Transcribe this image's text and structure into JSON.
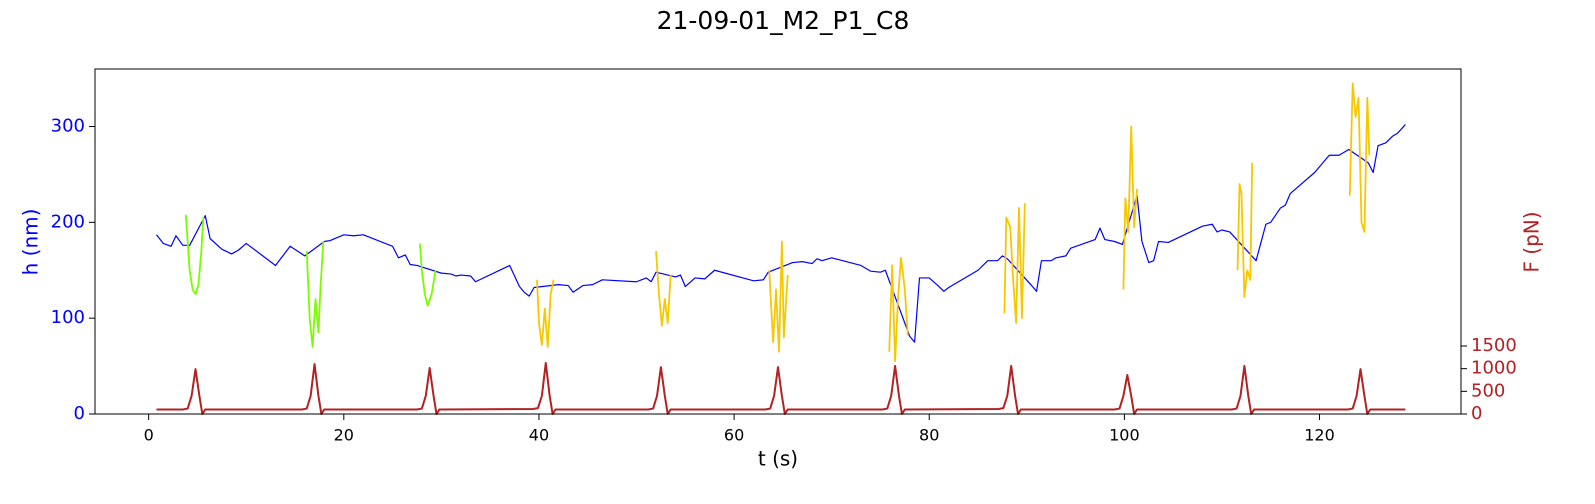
{
  "chart_data": {
    "type": "line",
    "title": "21-09-01_M2_P1_C8",
    "xlabel": "t (s)",
    "ylabel": "h (nm)",
    "y2label": "F (pN)",
    "xlim": [
      -5.5,
      134.5
    ],
    "xticks": [
      0,
      20,
      40,
      60,
      80,
      100,
      120
    ],
    "ylim": [
      0,
      360
    ],
    "yticks": [
      0,
      100,
      200,
      300
    ],
    "y2lim": [
      0,
      7610
    ],
    "y2ticks": [
      0,
      500,
      1000,
      1500
    ],
    "ycolor": "#0000ff",
    "y2color": "#b22222",
    "series": [
      {
        "color": "#0000ff",
        "axis": "y",
        "x": [
          0.8,
          1.5,
          2.3,
          2.8,
          3.5,
          4.2,
          5.8,
          6.3,
          7.5,
          8.5,
          9.2,
          10,
          13,
          14.5,
          16,
          18,
          18.6,
          20,
          21,
          22,
          25,
          25.6,
          26.3,
          26.8,
          27.5,
          30,
          31,
          31.5,
          32,
          33,
          33.5,
          37,
          38,
          38.5,
          39,
          39.5,
          42,
          43,
          43.5,
          44.5,
          45.5,
          46.5,
          50,
          51,
          51.5,
          52,
          54,
          54.5,
          55,
          56,
          57,
          58,
          62,
          63,
          63.5,
          66,
          67,
          68,
          68.5,
          69,
          70,
          73,
          74,
          75,
          75.5,
          78,
          78.5,
          79,
          80,
          81,
          81.5,
          82,
          85,
          86,
          87,
          87.5,
          88,
          90.5,
          91,
          91.5,
          92.5,
          93,
          94,
          94.5,
          97,
          97.5,
          98,
          99,
          99.8,
          101.3,
          101.8,
          102.5,
          103,
          103.5,
          104.5,
          108,
          109,
          109.5,
          110,
          110.8,
          113.5,
          114.5,
          115,
          116,
          116.5,
          117,
          119.5,
          121,
          122,
          123,
          125,
          125.5,
          126,
          126.8,
          127.5,
          128,
          128.8
        ],
        "values": [
          187,
          178,
          175,
          186,
          176,
          176,
          207,
          183,
          172,
          167,
          171,
          178,
          155,
          175,
          165,
          180,
          181,
          187,
          186,
          187,
          175,
          163,
          166,
          156,
          155,
          147,
          146,
          144,
          145,
          144,
          138,
          155,
          133,
          127,
          123,
          132,
          135,
          134,
          127,
          134,
          135,
          140,
          138,
          142,
          138,
          148,
          143,
          145,
          133,
          142,
          141,
          150,
          139,
          140,
          148,
          158,
          159,
          157,
          162,
          160,
          163,
          155,
          149,
          148,
          150,
          81,
          75,
          142,
          142,
          133,
          128,
          132,
          150,
          160,
          160,
          165,
          162,
          134,
          128,
          160,
          160,
          163,
          165,
          173,
          182,
          194,
          182,
          180,
          177,
          228,
          180,
          158,
          160,
          180,
          179,
          196,
          198,
          190,
          192,
          190,
          160,
          198,
          200,
          215,
          218,
          230,
          252,
          270,
          270,
          276,
          262,
          252,
          280,
          283,
          290,
          293,
          302
        ]
      },
      {
        "color": "#7cfc00",
        "axis": "y",
        "x": [
          3.8,
          4.0,
          4.2,
          4.5,
          4.8,
          5.1,
          5.4,
          5.6,
          10,
          16.2,
          16.5,
          16.8,
          17.1,
          17.4,
          17.6,
          17.9,
          22,
          27.8,
          28.0,
          28.3,
          28.6,
          29.0,
          29.4
        ],
        "values": [
          208,
          180,
          150,
          130,
          125,
          135,
          170,
          205,
          null,
          170,
          100,
          70,
          120,
          85,
          130,
          180,
          null,
          178,
          150,
          125,
          113,
          125,
          150
        ]
      },
      {
        "color": "#f5c800",
        "axis": "y",
        "x": [
          39.8,
          40.0,
          40.3,
          40.6,
          40.9,
          41.2,
          41.5,
          46,
          52.0,
          52.3,
          52.6,
          52.9,
          53.2,
          53.5,
          58,
          63.6,
          64.0,
          64.3,
          64.6,
          64.9,
          65.1,
          65.5,
          70,
          75.9,
          76.2,
          76.5,
          76.8,
          77.1,
          77.5,
          77.8,
          82,
          87.7,
          87.9,
          88.3,
          88.6,
          88.9,
          89.2,
          89.5,
          89.8,
          95,
          99.9,
          100.1,
          100.4,
          100.7,
          101.0,
          101.3,
          106,
          111.6,
          111.8,
          112.0,
          112.3,
          112.6,
          112.9,
          113.1,
          118,
          123.1,
          123.4,
          123.7,
          124.0,
          124.3,
          124.6,
          124.9,
          125.1
        ],
        "values": [
          140,
          95,
          72,
          110,
          70,
          125,
          140,
          null,
          170,
          125,
          92,
          120,
          95,
          145,
          null,
          150,
          75,
          130,
          65,
          180,
          80,
          145,
          null,
          65,
          155,
          55,
          120,
          163,
          130,
          82,
          null,
          105,
          205,
          195,
          140,
          95,
          215,
          100,
          220,
          null,
          130,
          225,
          190,
          300,
          195,
          235,
          null,
          150,
          240,
          230,
          122,
          150,
          140,
          262,
          null,
          228,
          345,
          310,
          330,
          200,
          190,
          330,
          270
        ]
      },
      {
        "color": "#b22222",
        "axis": "y2",
        "x": [
          0.8,
          3.5,
          4.0,
          4.4,
          4.8,
          5.2,
          5.5,
          5.8,
          15.7,
          16.2,
          16.6,
          17.0,
          17.4,
          17.7,
          18.0,
          27.5,
          28.0,
          28.4,
          28.8,
          29.2,
          29.5,
          29.8,
          39.4,
          39.9,
          40.3,
          40.7,
          41.1,
          41.4,
          41.7,
          51.2,
          51.7,
          52.1,
          52.5,
          52.9,
          53.2,
          53.5,
          63.2,
          63.7,
          64.1,
          64.5,
          64.9,
          65.2,
          65.5,
          75.2,
          75.7,
          76.1,
          76.5,
          76.9,
          77.2,
          77.5,
          87.1,
          87.6,
          88.0,
          88.4,
          88.8,
          89.1,
          89.4,
          99.0,
          99.5,
          99.9,
          100.3,
          100.7,
          101.0,
          101.3,
          111.0,
          111.5,
          111.9,
          112.3,
          112.7,
          113.0,
          113.3,
          122.9,
          123.4,
          123.8,
          124.2,
          124.6,
          124.9,
          125.2,
          128.8
        ],
        "values": [
          100,
          100,
          120,
          400,
          990,
          400,
          0,
          100,
          100,
          120,
          400,
          1100,
          400,
          0,
          100,
          100,
          120,
          400,
          1015,
          400,
          0,
          100,
          110,
          130,
          400,
          1125,
          400,
          0,
          100,
          100,
          120,
          400,
          1035,
          400,
          0,
          100,
          100,
          120,
          400,
          1035,
          400,
          0,
          100,
          100,
          120,
          400,
          1060,
          400,
          0,
          100,
          110,
          130,
          400,
          1060,
          400,
          0,
          100,
          100,
          120,
          400,
          860,
          400,
          0,
          100,
          100,
          120,
          400,
          1060,
          400,
          0,
          100,
          100,
          120,
          400,
          990,
          400,
          0,
          100,
          100
        ]
      }
    ]
  }
}
